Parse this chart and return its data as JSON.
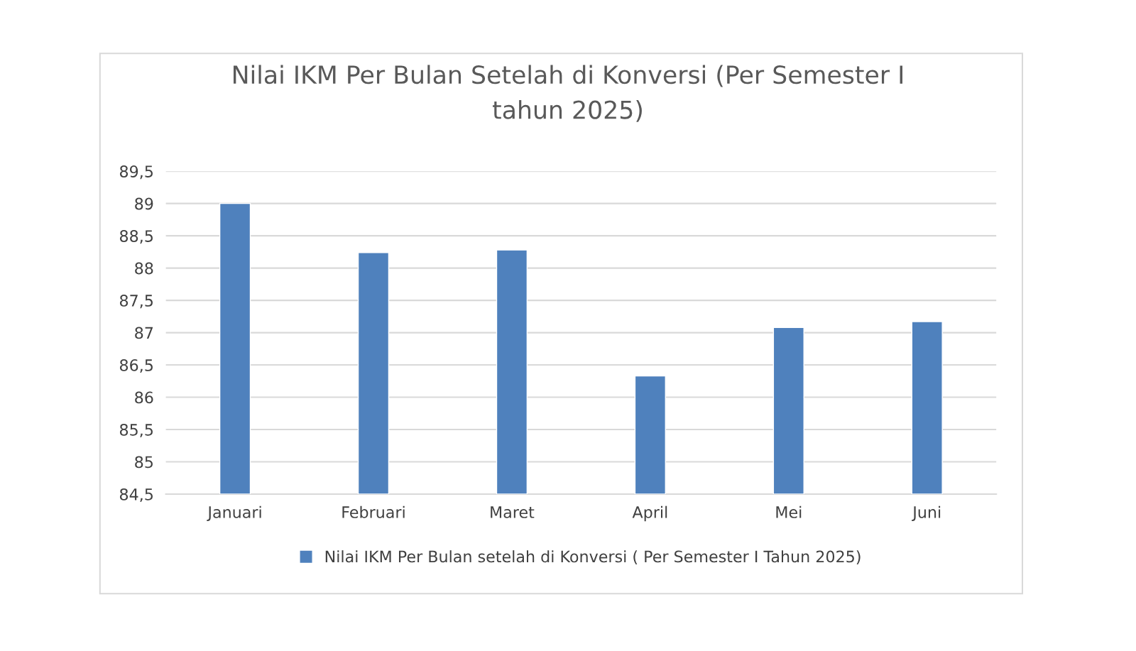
{
  "chart_data": {
    "type": "bar",
    "title": "Nilai IKM Per Bulan Setelah di Konversi (Per Semester I\ntahun 2025)",
    "categories": [
      "Januari",
      "Februari",
      "Maret",
      "April",
      "Mei",
      "Juni"
    ],
    "series": [
      {
        "name": "Nilai IKM Per Bulan setelah di Konversi ( Per Semester I Tahun 2025)",
        "color": "#4f81bd",
        "values": [
          89.0,
          88.24,
          88.28,
          86.33,
          87.08,
          87.17
        ]
      }
    ],
    "ylim": [
      84.5,
      89.5
    ],
    "yticks": [
      {
        "value": 84.5,
        "label": "84,5"
      },
      85,
      {
        "value": 85.5,
        "label": "85,5"
      },
      86,
      {
        "value": 86.5,
        "label": "86,5"
      },
      87,
      {
        "value": 87.5,
        "label": "87,5"
      },
      88,
      {
        "value": 88.5,
        "label": "88,5"
      },
      89,
      {
        "value": 89.5,
        "label": "89,5"
      }
    ],
    "grid": "y",
    "legend": "bottom"
  }
}
